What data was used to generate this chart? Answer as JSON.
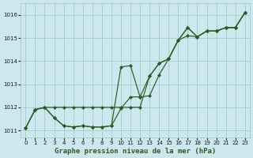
{
  "xlabel": "Graphe pression niveau de la mer (hPa)",
  "bg_color": "#cce8ee",
  "grid_color": "#aacfca",
  "line_color": "#2d5a1e",
  "xlim": [
    -0.5,
    23.5
  ],
  "ylim": [
    1010.7,
    1016.5
  ],
  "xticks": [
    0,
    1,
    2,
    3,
    4,
    5,
    6,
    7,
    8,
    9,
    10,
    11,
    12,
    13,
    14,
    15,
    16,
    17,
    18,
    19,
    20,
    21,
    22,
    23
  ],
  "yticks": [
    1011,
    1012,
    1013,
    1014,
    1015,
    1016
  ],
  "series1_x": [
    0,
    1,
    2,
    3,
    4,
    5,
    6,
    7,
    8,
    9,
    10,
    11,
    12,
    13,
    14,
    15,
    16,
    17,
    18,
    19,
    20,
    21,
    22,
    23
  ],
  "series1_y": [
    1011.1,
    1011.9,
    1012.0,
    1011.55,
    1011.2,
    1011.15,
    1011.2,
    1011.15,
    1011.15,
    1011.2,
    1011.95,
    1012.45,
    1012.45,
    1012.5,
    1013.4,
    1014.1,
    1014.9,
    1015.1,
    1015.05,
    1015.3,
    1015.3,
    1015.45,
    1015.45,
    1016.1
  ],
  "series2_x": [
    0,
    1,
    2,
    3,
    4,
    5,
    6,
    7,
    8,
    9,
    10,
    11,
    12,
    13,
    14,
    15,
    16,
    17,
    18,
    19,
    20,
    21,
    22,
    23
  ],
  "series2_y": [
    1011.1,
    1011.9,
    1012.0,
    1012.0,
    1012.0,
    1012.0,
    1012.0,
    1012.0,
    1012.0,
    1012.0,
    1012.0,
    1012.0,
    1012.0,
    1013.35,
    1013.9,
    1014.1,
    1014.9,
    1015.45,
    1015.05,
    1015.3,
    1015.3,
    1015.45,
    1015.45,
    1016.1
  ],
  "series3_x": [
    0,
    1,
    2,
    3,
    4,
    5,
    6,
    7,
    8,
    9,
    10,
    11,
    12,
    13,
    14,
    15,
    16,
    17,
    18,
    19,
    20,
    21,
    22,
    23
  ],
  "series3_y": [
    1011.1,
    1011.9,
    1012.0,
    1011.55,
    1011.2,
    1011.15,
    1011.2,
    1011.15,
    1011.15,
    1011.2,
    1013.75,
    1013.8,
    1012.45,
    1013.35,
    1013.9,
    1014.1,
    1014.9,
    1015.45,
    1015.05,
    1015.3,
    1015.3,
    1015.45,
    1015.45,
    1016.1
  ]
}
